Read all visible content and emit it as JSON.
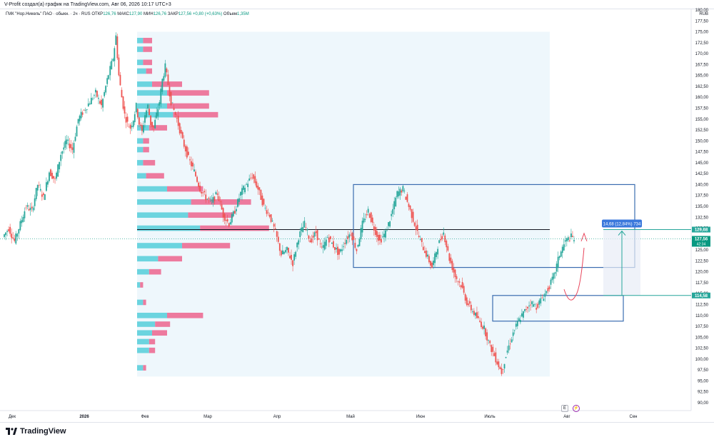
{
  "caption": "V-Profit создал(а) график на TradingView.com, Авг 06, 2026 10:17 UTC+3",
  "legend": {
    "symbol": "ГМК \"Нор.Никель\" ПАО · обыкн. · 2ч · RUS",
    "open_label": "ОТКР",
    "open": "126,76",
    "high_label": "МАКС",
    "high": "127,90",
    "low_label": "МИН",
    "low": "126,76",
    "close_label": "ЗАКР",
    "close": "127,56",
    "change": "+0,80 (+0,63%)",
    "volume_label": "Объем",
    "volume": "1,35M"
  },
  "currency": "RUB",
  "brand": "TradingView",
  "buttons": {
    "e": "E",
    "lightning": "⚡"
  },
  "chart_data": {
    "type": "candlestick",
    "y_axis": {
      "min": 90,
      "max": 180,
      "step": 2.5,
      "position": "right",
      "tick_labels": [
        "90,00",
        "92,50",
        "95,00",
        "97,50",
        "100,00",
        "102,50",
        "105,00",
        "107,50",
        "110,00",
        "112,50",
        "115,00",
        "117,50",
        "120,00",
        "122,50",
        "125,00",
        "127,50",
        "130,00",
        "132,50",
        "135,00",
        "137,50",
        "140,00",
        "142,50",
        "145,00",
        "147,50",
        "150,00",
        "152,50",
        "155,00",
        "157,50",
        "160,00",
        "162,50",
        "165,00",
        "167,50",
        "170,00",
        "172,50",
        "175,00",
        "177,50",
        "180,00"
      ]
    },
    "x_axis": {
      "tick_labels": [
        "Дек",
        "2026",
        "Фев",
        "Мар",
        "Апр",
        "Май",
        "Июн",
        "Июль",
        "Авг",
        "Сен"
      ],
      "bold_labels": [
        "2026"
      ]
    },
    "price_path": [
      [
        0,
        128
      ],
      [
        2,
        130
      ],
      [
        4,
        127
      ],
      [
        6,
        131
      ],
      [
        8,
        135
      ],
      [
        10,
        134
      ],
      [
        12,
        140
      ],
      [
        14,
        137
      ],
      [
        16,
        143
      ],
      [
        18,
        141
      ],
      [
        20,
        147
      ],
      [
        22,
        150
      ],
      [
        24,
        148
      ],
      [
        26,
        155
      ],
      [
        28,
        157
      ],
      [
        30,
        159
      ],
      [
        32,
        161
      ],
      [
        34,
        158
      ],
      [
        36,
        164
      ],
      [
        38,
        169
      ],
      [
        39,
        174
      ],
      [
        40,
        165
      ],
      [
        41,
        160
      ],
      [
        42,
        156
      ],
      [
        43,
        154
      ],
      [
        44,
        153
      ],
      [
        45,
        155
      ],
      [
        46,
        158
      ],
      [
        47,
        154
      ],
      [
        48,
        152
      ],
      [
        49,
        156
      ],
      [
        50,
        158
      ],
      [
        51,
        154
      ],
      [
        52,
        153
      ],
      [
        53,
        156
      ],
      [
        54,
        159
      ],
      [
        55,
        164
      ],
      [
        56,
        167
      ],
      [
        57,
        163
      ],
      [
        58,
        159
      ],
      [
        60,
        155
      ],
      [
        62,
        150
      ],
      [
        64,
        146
      ],
      [
        66,
        143
      ],
      [
        68,
        139
      ],
      [
        70,
        137
      ],
      [
        72,
        136
      ],
      [
        74,
        138
      ],
      [
        76,
        133
      ],
      [
        78,
        131
      ],
      [
        80,
        134
      ],
      [
        82,
        138
      ],
      [
        84,
        140
      ],
      [
        86,
        142
      ],
      [
        88,
        139
      ],
      [
        90,
        135
      ],
      [
        92,
        133
      ],
      [
        94,
        129
      ],
      [
        96,
        124
      ],
      [
        98,
        125
      ],
      [
        100,
        122
      ],
      [
        102,
        128
      ],
      [
        104,
        131
      ],
      [
        106,
        127
      ],
      [
        108,
        129
      ],
      [
        110,
        125
      ],
      [
        112,
        128
      ],
      [
        114,
        126
      ],
      [
        116,
        124
      ],
      [
        118,
        127
      ],
      [
        120,
        129
      ],
      [
        122,
        125
      ],
      [
        124,
        131
      ],
      [
        126,
        134
      ],
      [
        128,
        130
      ],
      [
        130,
        127
      ],
      [
        132,
        129
      ],
      [
        134,
        133
      ],
      [
        136,
        138
      ],
      [
        138,
        139
      ],
      [
        140,
        135
      ],
      [
        142,
        131
      ],
      [
        144,
        127
      ],
      [
        146,
        124
      ],
      [
        148,
        121
      ],
      [
        150,
        126
      ],
      [
        152,
        129
      ],
      [
        154,
        123
      ],
      [
        156,
        119
      ],
      [
        158,
        117
      ],
      [
        160,
        113
      ],
      [
        162,
        111
      ],
      [
        164,
        109
      ],
      [
        166,
        107
      ],
      [
        168,
        103
      ],
      [
        170,
        100
      ],
      [
        172,
        97
      ],
      [
        174,
        102
      ],
      [
        176,
        106
      ],
      [
        178,
        109
      ],
      [
        180,
        111
      ],
      [
        182,
        113
      ],
      [
        184,
        112
      ],
      [
        186,
        114
      ],
      [
        188,
        116
      ],
      [
        190,
        119
      ],
      [
        192,
        124
      ],
      [
        194,
        127
      ],
      [
        196,
        128
      ],
      [
        197,
        127.56
      ]
    ],
    "volume_profile": [
      {
        "price": 98,
        "buy": 0.02,
        "sell": 0.01
      },
      {
        "price": 102,
        "buy": 0.04,
        "sell": 0.02
      },
      {
        "price": 104,
        "buy": 0.04,
        "sell": 0.02
      },
      {
        "price": 106,
        "buy": 0.05,
        "sell": 0.05
      },
      {
        "price": 108,
        "buy": 0.06,
        "sell": 0.05
      },
      {
        "price": 110,
        "buy": 0.1,
        "sell": 0.12
      },
      {
        "price": 113,
        "buy": 0.02,
        "sell": 0.01
      },
      {
        "price": 117,
        "buy": 0.01,
        "sell": 0.01
      },
      {
        "price": 120,
        "buy": 0.04,
        "sell": 0.04
      },
      {
        "price": 123,
        "buy": 0.07,
        "sell": 0.08
      },
      {
        "price": 126,
        "buy": 0.15,
        "sell": 0.16
      },
      {
        "price": 130,
        "buy": 0.21,
        "sell": 0.23
      },
      {
        "price": 133,
        "buy": 0.17,
        "sell": 0.15
      },
      {
        "price": 136,
        "buy": 0.18,
        "sell": 0.2
      },
      {
        "price": 139,
        "buy": 0.1,
        "sell": 0.12
      },
      {
        "price": 142,
        "buy": 0.03,
        "sell": 0.06
      },
      {
        "price": 145,
        "buy": 0.02,
        "sell": 0.04
      },
      {
        "price": 148,
        "buy": 0.02,
        "sell": 0.02
      },
      {
        "price": 150,
        "buy": 0.02,
        "sell": 0.02
      },
      {
        "price": 153,
        "buy": 0.04,
        "sell": 0.06
      },
      {
        "price": 156,
        "buy": 0.12,
        "sell": 0.15
      },
      {
        "price": 158,
        "buy": 0.1,
        "sell": 0.14
      },
      {
        "price": 161,
        "buy": 0.1,
        "sell": 0.14
      },
      {
        "price": 163,
        "buy": 0.05,
        "sell": 0.1
      },
      {
        "price": 166,
        "buy": 0.03,
        "sell": 0.02
      },
      {
        "price": 168,
        "buy": 0.02,
        "sell": 0.03
      },
      {
        "price": 171,
        "buy": 0.02,
        "sell": 0.03
      },
      {
        "price": 173,
        "buy": 0.02,
        "sell": 0.03
      }
    ],
    "poc_price": 129.68,
    "upper_range_box": {
      "price_top": 140,
      "price_bottom": 121
    },
    "lower_range_box": {
      "price_top": 114.58,
      "price_bottom": 108.7
    },
    "measure_label": "14,68 (12,84%) 734",
    "price_tags": [
      {
        "value": "129,68",
        "color": "#26a69a"
      },
      {
        "value": "127,56",
        "sub": "42:34",
        "color": "#089981"
      },
      {
        "value": "114,58",
        "color": "#26a69a"
      }
    ],
    "colors": {
      "up": "#26a69a",
      "down": "#ef5350",
      "profile_buy": "#5ccfdc",
      "profile_sell": "#ec6c94",
      "profile_bg": "#eef7fc",
      "box": "#3b6db0",
      "poc": "#131722",
      "measure": "#3b78dc",
      "arrow": "#e8455b"
    }
  }
}
